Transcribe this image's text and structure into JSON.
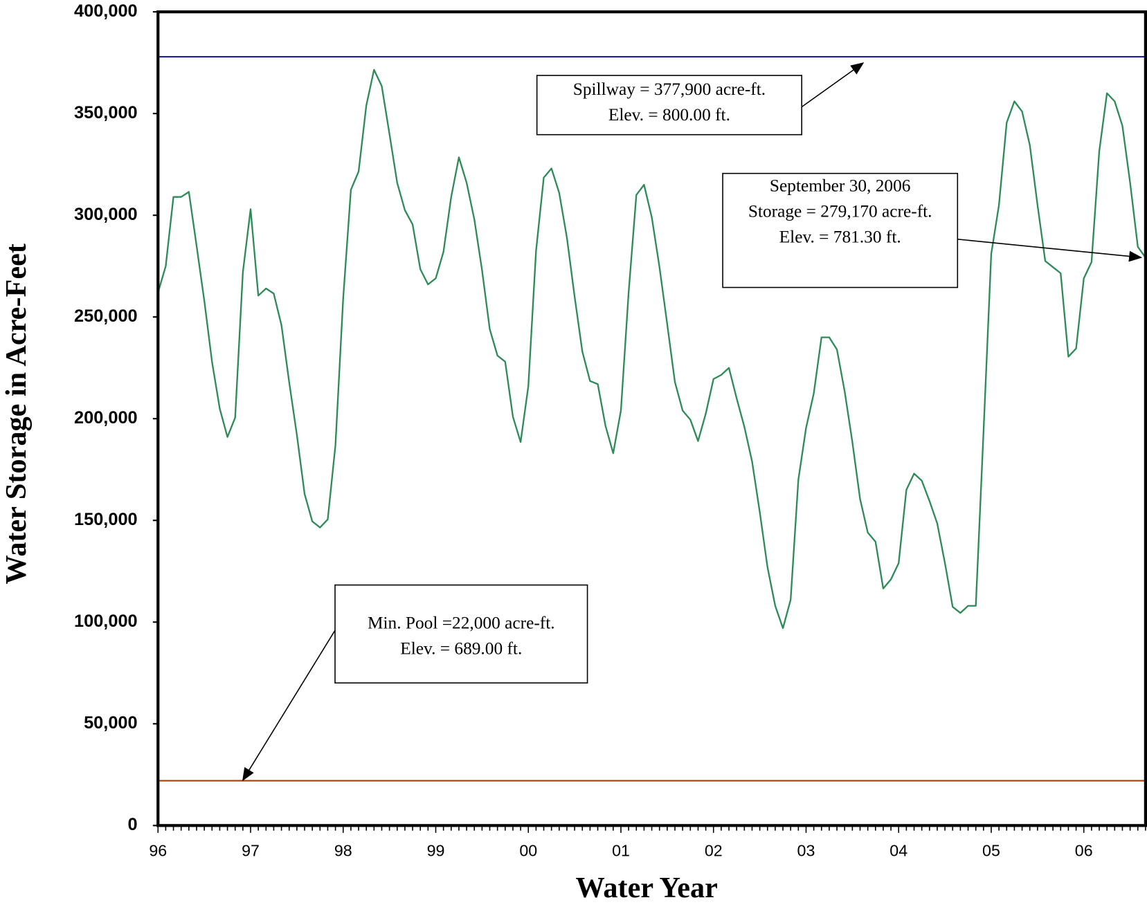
{
  "chart_data": {
    "type": "line",
    "xlabel": "Water Year",
    "ylabel": "Water Storage in Acre-Feet",
    "categories": [
      "96",
      null,
      null,
      null,
      null,
      null,
      null,
      null,
      null,
      null,
      null,
      null,
      "97",
      null,
      null,
      null,
      null,
      null,
      null,
      null,
      null,
      null,
      null,
      null,
      "98",
      null,
      null,
      null,
      null,
      null,
      null,
      null,
      null,
      null,
      null,
      null,
      "99",
      null,
      null,
      null,
      null,
      null,
      null,
      null,
      null,
      null,
      null,
      null,
      "00",
      null,
      null,
      null,
      null,
      null,
      null,
      null,
      null,
      null,
      null,
      null,
      "01",
      null,
      null,
      null,
      null,
      null,
      null,
      null,
      null,
      null,
      null,
      null,
      "02",
      null,
      null,
      null,
      null,
      null,
      null,
      null,
      null,
      null,
      null,
      null,
      "03",
      null,
      null,
      null,
      null,
      null,
      null,
      null,
      null,
      null,
      null,
      null,
      "04",
      null,
      null,
      null,
      null,
      null,
      null,
      null,
      null,
      null,
      null,
      null,
      "05",
      null,
      null,
      null,
      null,
      null,
      null,
      null,
      null,
      null,
      null,
      null,
      "06",
      null,
      null,
      null,
      null,
      null,
      null,
      null,
      null
    ],
    "series": [
      {
        "color": "#2e8b57",
        "values": [
          262000,
          275000,
          309000,
          309000,
          311500,
          285000,
          258000,
          228000,
          205000,
          191000,
          200500,
          272000,
          303000,
          260500,
          264000,
          261500,
          246000,
          218000,
          192000,
          163000,
          149500,
          146500,
          150500,
          187000,
          259000,
          312500,
          321500,
          354000,
          371500,
          363500,
          340000,
          316000,
          302500,
          295500,
          273500,
          266000,
          269000,
          282000,
          309000,
          328500,
          316000,
          298000,
          273000,
          244000,
          231000,
          228000,
          201000,
          188500,
          216000,
          282500,
          318500,
          323000,
          311000,
          289000,
          260000,
          233000,
          218500,
          217000,
          196500,
          183000,
          204000,
          262000,
          310000,
          315000,
          299000,
          274500,
          246500,
          218000,
          204000,
          199500,
          189000,
          202500,
          219500,
          221500,
          225000,
          210000,
          196000,
          179000,
          154000,
          127000,
          108000,
          97000,
          111000,
          170000,
          195500,
          212500,
          240000,
          240000,
          234000,
          213500,
          188500,
          160500,
          144000,
          139500,
          116500,
          121000,
          129000,
          165000,
          173000,
          169500,
          159500,
          148500,
          129000,
          107500,
          104500,
          108000,
          108000,
          193500,
          281000,
          305000,
          345500,
          356000,
          351000,
          334500,
          305000,
          277500,
          274500,
          271500,
          230500,
          234500,
          269000,
          277000,
          331500,
          360000,
          356000,
          344000,
          316000,
          284500,
          279170
        ]
      }
    ],
    "reference_lines": [
      {
        "value": 377900,
        "color": "#1f1f9f"
      },
      {
        "value": 22000,
        "color": "#a0400a"
      }
    ],
    "annotations": [
      {
        "lines": [
          "Spillway = 377,900 acre-ft.",
          "Elev. = 800.00 ft."
        ]
      },
      {
        "lines": [
          "September 30, 2006",
          "Storage = 279,170 acre-ft.",
          "Elev. = 781.30 ft."
        ]
      },
      {
        "lines": [
          "Min. Pool =22,000 acre-ft.",
          "Elev. = 689.00 ft."
        ]
      }
    ],
    "ylim": [
      0,
      400000
    ],
    "yticks": [
      0,
      {
        "value": 50000,
        "label": "50,000"
      },
      {
        "value": 100000,
        "label": "100,000"
      },
      {
        "value": 150000,
        "label": "150,000"
      },
      {
        "value": 200000,
        "label": "200,000"
      },
      {
        "value": 250000,
        "label": "250,000"
      },
      {
        "value": 300000,
        "label": "300,000"
      },
      {
        "value": 350000,
        "label": "350,000"
      },
      {
        "value": 400000,
        "label": "400,000"
      }
    ]
  }
}
